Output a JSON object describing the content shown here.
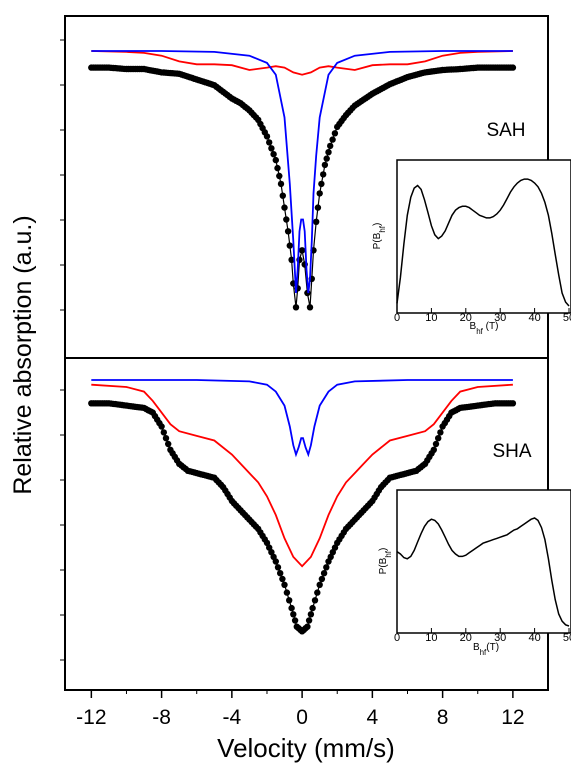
{
  "chart_data": {
    "type": "line",
    "xlabel": "Velocity (mm/s)",
    "ylabel": "Relative absorption (a.u.)",
    "xlim": [
      -13.5,
      14
    ],
    "xticks": [
      "-12",
      "-8",
      "-4",
      "0",
      "4",
      "8",
      "12"
    ],
    "xtick_values": [
      -12,
      -8,
      -4,
      0,
      4,
      8,
      12
    ],
    "panels": [
      {
        "label": "SAH",
        "y_range": [
          0.45,
          1.0
        ],
        "series": [
          {
            "color": "#000000",
            "style": "markers-with-line",
            "x": [
              -12,
              -11,
              -10,
              -9,
              -8,
              -7,
              -6,
              -5,
              -4,
              -3.5,
              -3,
              -2.5,
              -2,
              -1.5,
              -1.2,
              -1,
              -0.8,
              -0.6,
              -0.5,
              -0.35,
              -0.25,
              -0.15,
              0,
              0.15,
              0.3,
              0.45,
              0.55,
              0.65,
              0.8,
              1,
              1.3,
              1.6,
              2,
              2.5,
              3,
              4,
              5,
              6,
              7,
              8,
              9,
              10,
              11,
              12
            ],
            "y": [
              0.965,
              0.965,
              0.962,
              0.962,
              0.955,
              0.952,
              0.94,
              0.928,
              0.9,
              0.89,
              0.875,
              0.855,
              0.82,
              0.77,
              0.72,
              0.67,
              0.62,
              0.56,
              0.51,
              0.46,
              0.5,
              0.56,
              0.58,
              0.55,
              0.49,
              0.46,
              0.52,
              0.58,
              0.64,
              0.7,
              0.76,
              0.8,
              0.84,
              0.865,
              0.885,
              0.91,
              0.93,
              0.945,
              0.955,
              0.96,
              0.962,
              0.965,
              0.965,
              0.965
            ]
          },
          {
            "color": "#ff0000",
            "style": "line",
            "x": [
              -12,
              -10,
              -9,
              -8,
              -7,
              -6,
              -5,
              -4,
              -3,
              -2,
              -1.5,
              -1,
              -0.5,
              0,
              0.5,
              1,
              1.5,
              2,
              3,
              4,
              5,
              6,
              7,
              8,
              9,
              10,
              12
            ],
            "y": [
              1.0,
              0.998,
              0.996,
              0.99,
              0.978,
              0.972,
              0.972,
              0.97,
              0.96,
              0.965,
              0.968,
              0.965,
              0.955,
              0.95,
              0.955,
              0.965,
              0.968,
              0.965,
              0.96,
              0.97,
              0.972,
              0.972,
              0.978,
              0.99,
              0.996,
              0.998,
              1.0
            ]
          },
          {
            "color": "#0000ff",
            "style": "line",
            "x": [
              -12,
              -8,
              -5,
              -3,
              -2,
              -1.5,
              -1,
              -0.7,
              -0.5,
              -0.35,
              -0.25,
              -0.15,
              -0.05,
              0.05,
              0.15,
              0.25,
              0.35,
              0.45,
              0.55,
              0.65,
              0.8,
              1,
              1.5,
              2,
              3,
              5,
              8,
              12
            ],
            "y": [
              1.0,
              1.0,
              0.998,
              0.99,
              0.975,
              0.95,
              0.86,
              0.72,
              0.6,
              0.49,
              0.54,
              0.62,
              0.645,
              0.645,
              0.62,
              0.54,
              0.49,
              0.52,
              0.6,
              0.7,
              0.78,
              0.86,
              0.95,
              0.975,
              0.99,
              0.998,
              1.0,
              1.0
            ]
          }
        ],
        "inset": {
          "type": "line",
          "xlabel": "Bhf (T)",
          "ylabel": "P(Bhf)",
          "xlim": [
            0,
            50
          ],
          "ylim": [
            0,
            1.05
          ],
          "xticks": [
            "0",
            "10",
            "20",
            "30",
            "40",
            "50"
          ],
          "series": [
            {
              "color": "#000000",
              "x": [
                0,
                1,
                2,
                3,
                4,
                5,
                6,
                7,
                8,
                9,
                10,
                11,
                12,
                13,
                14,
                15,
                16,
                17,
                18,
                19,
                20,
                21,
                22,
                23,
                24,
                25,
                26,
                27,
                28,
                29,
                30,
                31,
                32,
                33,
                34,
                35,
                36,
                37,
                38,
                39,
                40,
                41,
                42,
                43,
                44,
                45,
                46,
                47,
                48,
                49,
                50
              ],
              "y": [
                0.02,
                0.22,
                0.48,
                0.7,
                0.84,
                0.91,
                0.93,
                0.9,
                0.82,
                0.72,
                0.62,
                0.55,
                0.52,
                0.54,
                0.58,
                0.64,
                0.7,
                0.74,
                0.76,
                0.77,
                0.77,
                0.76,
                0.74,
                0.72,
                0.7,
                0.69,
                0.68,
                0.68,
                0.69,
                0.71,
                0.74,
                0.78,
                0.83,
                0.88,
                0.92,
                0.95,
                0.97,
                0.98,
                0.98,
                0.97,
                0.95,
                0.92,
                0.87,
                0.8,
                0.7,
                0.56,
                0.4,
                0.24,
                0.1,
                0.03,
                0.0
              ]
            }
          ]
        }
      },
      {
        "label": "SHA",
        "y_range": [
          0.45,
          1.0
        ],
        "series": [
          {
            "color": "#000000",
            "style": "markers-with-line",
            "x": [
              -12,
              -11,
              -10,
              -9,
              -8.5,
              -8,
              -7.5,
              -7,
              -6.5,
              -6,
              -5.5,
              -5,
              -4.5,
              -4,
              -3.5,
              -3,
              -2.5,
              -2,
              -1.5,
              -1,
              -0.6,
              -0.3,
              0,
              0.3,
              0.6,
              1,
              1.5,
              2,
              2.5,
              3,
              3.5,
              4,
              4.5,
              5,
              5.5,
              6,
              6.5,
              7,
              7.5,
              8,
              8.5,
              9,
              10,
              11,
              12
            ],
            "y": [
              0.95,
              0.95,
              0.945,
              0.94,
              0.93,
              0.9,
              0.85,
              0.82,
              0.805,
              0.8,
              0.795,
              0.79,
              0.77,
              0.74,
              0.72,
              0.7,
              0.68,
              0.65,
              0.61,
              0.56,
              0.51,
              0.47,
              0.46,
              0.47,
              0.51,
              0.56,
              0.61,
              0.65,
              0.68,
              0.7,
              0.72,
              0.74,
              0.77,
              0.79,
              0.795,
              0.8,
              0.805,
              0.82,
              0.85,
              0.9,
              0.93,
              0.94,
              0.945,
              0.95,
              0.95
            ]
          },
          {
            "color": "#ff0000",
            "style": "line",
            "x": [
              -12,
              -10,
              -9,
              -8.5,
              -8,
              -7.5,
              -7,
              -6,
              -5,
              -4,
              -3.5,
              -3,
              -2.5,
              -2,
              -1.5,
              -1,
              -0.5,
              0,
              0.5,
              1,
              1.5,
              2,
              2.5,
              3,
              3.5,
              4,
              5,
              6,
              7,
              7.5,
              8,
              8.5,
              9,
              10,
              12
            ],
            "y": [
              0.99,
              0.985,
              0.975,
              0.955,
              0.93,
              0.905,
              0.89,
              0.88,
              0.87,
              0.84,
              0.82,
              0.8,
              0.78,
              0.75,
              0.71,
              0.66,
              0.62,
              0.6,
              0.62,
              0.66,
              0.71,
              0.75,
              0.78,
              0.8,
              0.82,
              0.84,
              0.87,
              0.88,
              0.89,
              0.905,
              0.93,
              0.955,
              0.975,
              0.985,
              0.99
            ]
          },
          {
            "color": "#0000ff",
            "style": "line",
            "x": [
              -12,
              -6,
              -3,
              -2,
              -1.5,
              -1,
              -0.7,
              -0.5,
              -0.35,
              -0.2,
              -0.05,
              0.05,
              0.2,
              0.35,
              0.5,
              0.7,
              1,
              1.5,
              2,
              3,
              6,
              12
            ],
            "y": [
              1.0,
              1.0,
              0.997,
              0.99,
              0.975,
              0.945,
              0.9,
              0.86,
              0.84,
              0.855,
              0.875,
              0.875,
              0.855,
              0.84,
              0.86,
              0.9,
              0.945,
              0.975,
              0.99,
              0.997,
              1.0,
              1.0
            ]
          }
        ],
        "inset": {
          "type": "line",
          "xlabel": "Bhf(T)",
          "ylabel": "P(Bhf)",
          "xlim": [
            0,
            50
          ],
          "ylim": [
            0,
            1.05
          ],
          "xticks": [
            "0",
            "10",
            "20",
            "30",
            "40",
            "50"
          ],
          "series": [
            {
              "color": "#000000",
              "x": [
                0,
                1,
                2,
                3,
                4,
                5,
                6,
                7,
                8,
                9,
                10,
                11,
                12,
                13,
                14,
                15,
                16,
                17,
                18,
                19,
                20,
                21,
                22,
                23,
                24,
                25,
                26,
                27,
                28,
                29,
                30,
                31,
                32,
                33,
                34,
                35,
                36,
                37,
                38,
                39,
                40,
                41,
                42,
                43,
                44,
                45,
                46,
                47,
                48,
                49,
                50
              ],
              "y": [
                0.62,
                0.6,
                0.57,
                0.56,
                0.58,
                0.63,
                0.7,
                0.77,
                0.83,
                0.87,
                0.89,
                0.88,
                0.85,
                0.8,
                0.74,
                0.68,
                0.63,
                0.6,
                0.58,
                0.58,
                0.59,
                0.61,
                0.63,
                0.65,
                0.67,
                0.69,
                0.7,
                0.71,
                0.72,
                0.73,
                0.74,
                0.75,
                0.76,
                0.78,
                0.8,
                0.81,
                0.83,
                0.85,
                0.87,
                0.89,
                0.9,
                0.88,
                0.82,
                0.72,
                0.56,
                0.38,
                0.22,
                0.1,
                0.04,
                0.01,
                0.0
              ]
            }
          ]
        }
      }
    ]
  }
}
